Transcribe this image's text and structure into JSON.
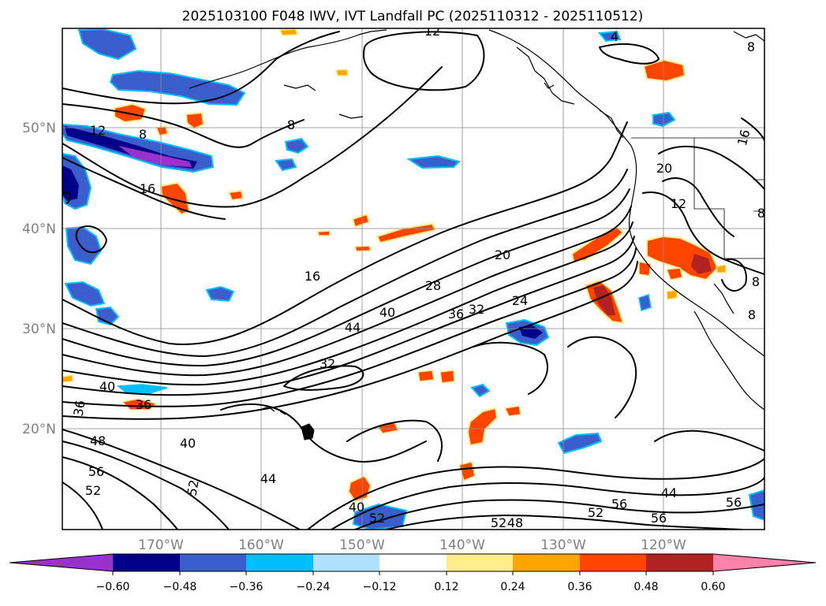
{
  "title": "2025103100 F048 IWV, IVT Landfall PC (2025110312 - 2025110512)",
  "lat_labels": [
    "50°N",
    "40°N",
    "30°N",
    "20°N"
  ],
  "lon_labels": [
    "170°W",
    "160°W",
    "150°W",
    "140°W",
    "130°W",
    "120°W"
  ],
  "colorbar": {
    "ticks": [
      "−0.60",
      "−0.48",
      "−0.36",
      "−0.24",
      "−0.12",
      "0.12",
      "0.24",
      "0.36",
      "0.48",
      "0.60"
    ],
    "colors": [
      "#9932cc",
      "#00008b",
      "#3a5fcd",
      "#00bfff",
      "#b0e2ff",
      "#ffffff",
      "#ffec8b",
      "#ffa500",
      "#ff4500",
      "#b22222",
      "#ff82ab"
    ]
  },
  "contour_labels": {
    "c1": "12",
    "c2": "4",
    "c3": "8",
    "c4": "8",
    "c5": "12",
    "c6": "8",
    "c7": "16",
    "c8": "16",
    "c9": "20",
    "c10": "20",
    "c11": "12",
    "c12": "8",
    "c13": "28",
    "c14": "24",
    "c15": "36",
    "c16": "32",
    "c17": "40",
    "c18": "44",
    "c19": "32",
    "c20": "40",
    "c21": "36",
    "c22": "36",
    "c23": "48",
    "c24": "40",
    "c25": "56",
    "c26": "52",
    "c27": "52",
    "c28": "44",
    "c29": "40",
    "c30": "52",
    "c31": "52",
    "c32": "48",
    "c33": "52",
    "c34": "56",
    "c35": "44",
    "c36": "56",
    "c37": "56",
    "c38": "8",
    "c39": "8",
    "c40": "16"
  }
}
